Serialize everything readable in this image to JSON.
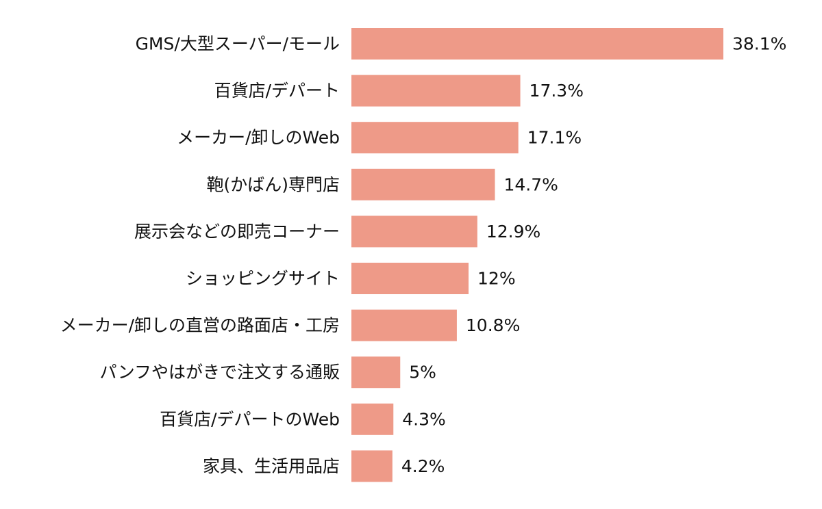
{
  "colors": {
    "bar": "#EE9A88",
    "text": "#111111",
    "background": "#FFFFFF"
  },
  "chart_data": {
    "type": "bar",
    "orientation": "horizontal",
    "title": "",
    "xlabel": "",
    "ylabel": "",
    "grid": false,
    "legend": "none",
    "xlim": [
      0,
      38.1
    ],
    "categories": [
      "GMS/大型スーパー/モール",
      "百貨店/デパート",
      "メーカー/卸しのWeb",
      "鞄(かばん)専門店",
      "展示会などの即売コーナー",
      "ショッピングサイト",
      "メーカー/卸しの直営の路面店・工房",
      "パンフやはがきで注文する通販",
      "百貨店/デパートのWeb",
      "家具、生活用品店"
    ],
    "values": [
      38.1,
      17.3,
      17.1,
      14.7,
      12.9,
      12,
      10.8,
      5,
      4.3,
      4.2
    ],
    "value_labels": [
      "38.1%",
      "17.3%",
      "17.1%",
      "14.7%",
      "12.9%",
      "12%",
      "10.8%",
      "5%",
      "4.3%",
      "4.2%"
    ]
  }
}
